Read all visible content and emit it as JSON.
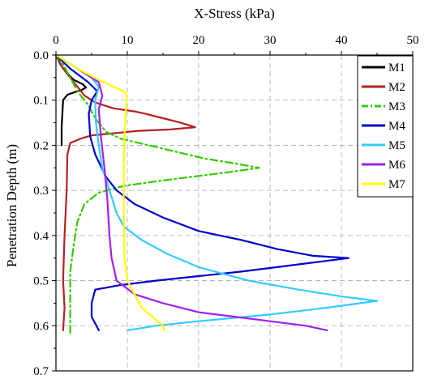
{
  "chart_data": {
    "type": "line",
    "xlabel": "X-Stress (kPa)",
    "ylabel": "Penetration Depth (m)",
    "xlim": [
      0,
      50
    ],
    "ylim": [
      0.0,
      0.7
    ],
    "x_axis_position": "top",
    "y_axis_inverted": true,
    "grid": "dashed",
    "legend_position": "top-right",
    "x_ticks": [
      "0",
      "10",
      "20",
      "30",
      "40",
      "50"
    ],
    "y_ticks": [
      "0.0",
      "0.1",
      "0.2",
      "0.3",
      "0.4",
      "0.5",
      "0.6",
      "0.7"
    ],
    "series": [
      {
        "name": "M1",
        "color": "#000000",
        "dash": "solid",
        "points": [
          [
            0.0,
            0.0
          ],
          [
            0.6,
            0.02
          ],
          [
            1.5,
            0.04
          ],
          [
            2.5,
            0.055
          ],
          [
            3.8,
            0.065
          ],
          [
            4.2,
            0.072
          ],
          [
            3.5,
            0.078
          ],
          [
            2.5,
            0.083
          ],
          [
            1.6,
            0.088
          ],
          [
            1.0,
            0.1
          ],
          [
            0.9,
            0.13
          ],
          [
            0.8,
            0.16
          ],
          [
            0.8,
            0.2
          ]
        ]
      },
      {
        "name": "M2",
        "color": "#b22222",
        "dash": "solid",
        "points": [
          [
            0.0,
            0.0
          ],
          [
            1.0,
            0.03
          ],
          [
            2.5,
            0.06
          ],
          [
            4.0,
            0.09
          ],
          [
            5.5,
            0.105
          ],
          [
            8.0,
            0.118
          ],
          [
            11.0,
            0.125
          ],
          [
            12.5,
            0.13
          ],
          [
            15.0,
            0.14
          ],
          [
            17.5,
            0.15
          ],
          [
            19.5,
            0.16
          ],
          [
            16.0,
            0.165
          ],
          [
            11.5,
            0.168
          ],
          [
            9.0,
            0.172
          ],
          [
            5.0,
            0.178
          ],
          [
            3.5,
            0.185
          ],
          [
            2.0,
            0.195
          ],
          [
            1.6,
            0.22
          ],
          [
            1.5,
            0.3
          ],
          [
            1.2,
            0.4
          ],
          [
            1.0,
            0.5
          ],
          [
            1.2,
            0.56
          ],
          [
            1.0,
            0.61
          ]
        ]
      },
      {
        "name": "M3",
        "color": "#33cc00",
        "dash": "dash",
        "points": [
          [
            0.0,
            0.0
          ],
          [
            1.0,
            0.02
          ],
          [
            2.0,
            0.05
          ],
          [
            3.0,
            0.08
          ],
          [
            4.5,
            0.11
          ],
          [
            5.5,
            0.14
          ],
          [
            7.0,
            0.17
          ],
          [
            9.0,
            0.185
          ],
          [
            13.0,
            0.2
          ],
          [
            17.0,
            0.215
          ],
          [
            21.0,
            0.23
          ],
          [
            25.0,
            0.24
          ],
          [
            28.5,
            0.25
          ],
          [
            24.0,
            0.26
          ],
          [
            19.0,
            0.27
          ],
          [
            14.0,
            0.28
          ],
          [
            9.5,
            0.29
          ],
          [
            6.0,
            0.305
          ],
          [
            4.0,
            0.33
          ],
          [
            3.0,
            0.37
          ],
          [
            2.5,
            0.42
          ],
          [
            2.0,
            0.48
          ],
          [
            2.0,
            0.54
          ],
          [
            2.0,
            0.6
          ],
          [
            2.0,
            0.62
          ]
        ]
      },
      {
        "name": "M4",
        "color": "#0000cc",
        "dash": "solid",
        "points": [
          [
            0.0,
            0.0
          ],
          [
            2.0,
            0.03
          ],
          [
            4.5,
            0.06
          ],
          [
            5.8,
            0.08
          ],
          [
            5.0,
            0.1
          ],
          [
            4.6,
            0.13
          ],
          [
            4.8,
            0.18
          ],
          [
            5.5,
            0.22
          ],
          [
            7.0,
            0.27
          ],
          [
            8.5,
            0.3
          ],
          [
            11.0,
            0.33
          ],
          [
            15.0,
            0.36
          ],
          [
            20.0,
            0.39
          ],
          [
            26.0,
            0.41
          ],
          [
            31.0,
            0.43
          ],
          [
            36.0,
            0.445
          ],
          [
            41.0,
            0.45
          ],
          [
            36.0,
            0.46
          ],
          [
            31.0,
            0.47
          ],
          [
            26.0,
            0.48
          ],
          [
            20.0,
            0.49
          ],
          [
            14.0,
            0.5
          ],
          [
            9.0,
            0.51
          ],
          [
            5.5,
            0.52
          ],
          [
            5.0,
            0.55
          ],
          [
            5.0,
            0.58
          ],
          [
            6.0,
            0.61
          ]
        ]
      },
      {
        "name": "M5",
        "color": "#33ccff",
        "dash": "solid",
        "points": [
          [
            0.0,
            0.0
          ],
          [
            3.0,
            0.03
          ],
          [
            5.0,
            0.05
          ],
          [
            6.0,
            0.07
          ],
          [
            5.5,
            0.1
          ],
          [
            5.6,
            0.15
          ],
          [
            6.0,
            0.2
          ],
          [
            6.5,
            0.25
          ],
          [
            7.5,
            0.3
          ],
          [
            8.5,
            0.35
          ],
          [
            9.5,
            0.38
          ],
          [
            12.0,
            0.41
          ],
          [
            15.5,
            0.44
          ],
          [
            20.0,
            0.47
          ],
          [
            27.0,
            0.5
          ],
          [
            34.0,
            0.52
          ],
          [
            40.0,
            0.535
          ],
          [
            45.0,
            0.545
          ],
          [
            38.0,
            0.56
          ],
          [
            30.0,
            0.575
          ],
          [
            20.0,
            0.59
          ],
          [
            14.0,
            0.6
          ],
          [
            10.0,
            0.61
          ]
        ]
      },
      {
        "name": "M6",
        "color": "#a020f0",
        "dash": "solid",
        "points": [
          [
            0.0,
            0.0
          ],
          [
            3.0,
            0.03
          ],
          [
            6.0,
            0.06
          ],
          [
            6.5,
            0.09
          ],
          [
            6.0,
            0.12
          ],
          [
            6.3,
            0.18
          ],
          [
            6.8,
            0.25
          ],
          [
            7.2,
            0.32
          ],
          [
            7.5,
            0.4
          ],
          [
            7.8,
            0.45
          ],
          [
            8.5,
            0.5
          ],
          [
            11.0,
            0.53
          ],
          [
            15.0,
            0.55
          ],
          [
            20.0,
            0.57
          ],
          [
            25.0,
            0.58
          ],
          [
            30.0,
            0.59
          ],
          [
            35.0,
            0.6
          ],
          [
            38.0,
            0.61
          ]
        ]
      },
      {
        "name": "M7",
        "color": "#ffff00",
        "dash": "solid",
        "points": [
          [
            0.0,
            0.0
          ],
          [
            3.0,
            0.03
          ],
          [
            6.0,
            0.055
          ],
          [
            8.0,
            0.07
          ],
          [
            9.5,
            0.08
          ],
          [
            10.0,
            0.09
          ],
          [
            9.8,
            0.12
          ],
          [
            9.6,
            0.18
          ],
          [
            9.5,
            0.25
          ],
          [
            9.5,
            0.35
          ],
          [
            9.6,
            0.45
          ],
          [
            10.0,
            0.5
          ],
          [
            11.0,
            0.53
          ],
          [
            12.0,
            0.56
          ],
          [
            13.5,
            0.58
          ],
          [
            15.0,
            0.6
          ],
          [
            15.2,
            0.61
          ]
        ]
      }
    ]
  }
}
